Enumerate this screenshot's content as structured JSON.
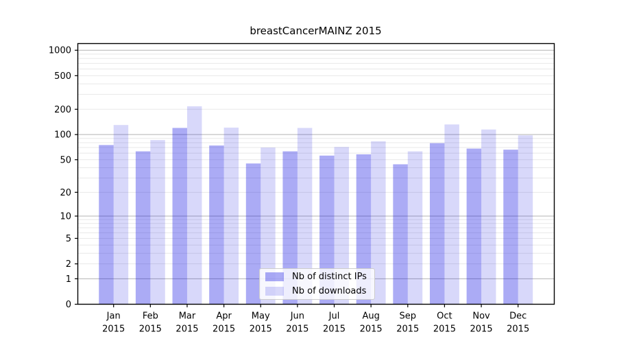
{
  "title": "breastCancerMAINZ 2015",
  "chart_data": {
    "type": "bar",
    "title": "breastCancerMAINZ 2015",
    "y_scale": "log10(value+1)",
    "categories": [
      "Jan",
      "Feb",
      "Mar",
      "Apr",
      "May",
      "Jun",
      "Jul",
      "Aug",
      "Sep",
      "Oct",
      "Nov",
      "Dec"
    ],
    "x_tick_second_line": "2015",
    "series": [
      {
        "key": "distinct-ips",
        "name": "Nb of distinct IPs",
        "base_color": "#0d0de2",
        "alpha": 0.35,
        "rendered_color": "#aaaaf8",
        "values": [
          75,
          63,
          120,
          74,
          45,
          63,
          56,
          58,
          44,
          79,
          68,
          66
        ]
      },
      {
        "key": "downloads",
        "name": "Nb of downloads",
        "base_color": "#0d0de2",
        "alpha": 0.16,
        "rendered_color": "#d8d8fa",
        "values": [
          130,
          86,
          217,
          121,
          70,
          120,
          71,
          83,
          63,
          132,
          115,
          98
        ]
      }
    ],
    "y_ticks": [
      0,
      1,
      2,
      5,
      10,
      20,
      50,
      100,
      200,
      500,
      1000
    ],
    "y_major_gridlines": [
      1,
      10,
      100,
      1000
    ],
    "y_minor_gridline_decades": [
      1,
      10,
      100
    ],
    "ylim": [
      0,
      1200
    ],
    "grid": "on",
    "legend_position": "lower center",
    "colors": {
      "grid_major": "#b3b3b3",
      "grid_minor": "#e8e8e8",
      "axis_frame": "#000000",
      "tick": "#000000",
      "text": "#000000",
      "background": "#ffffff"
    }
  }
}
